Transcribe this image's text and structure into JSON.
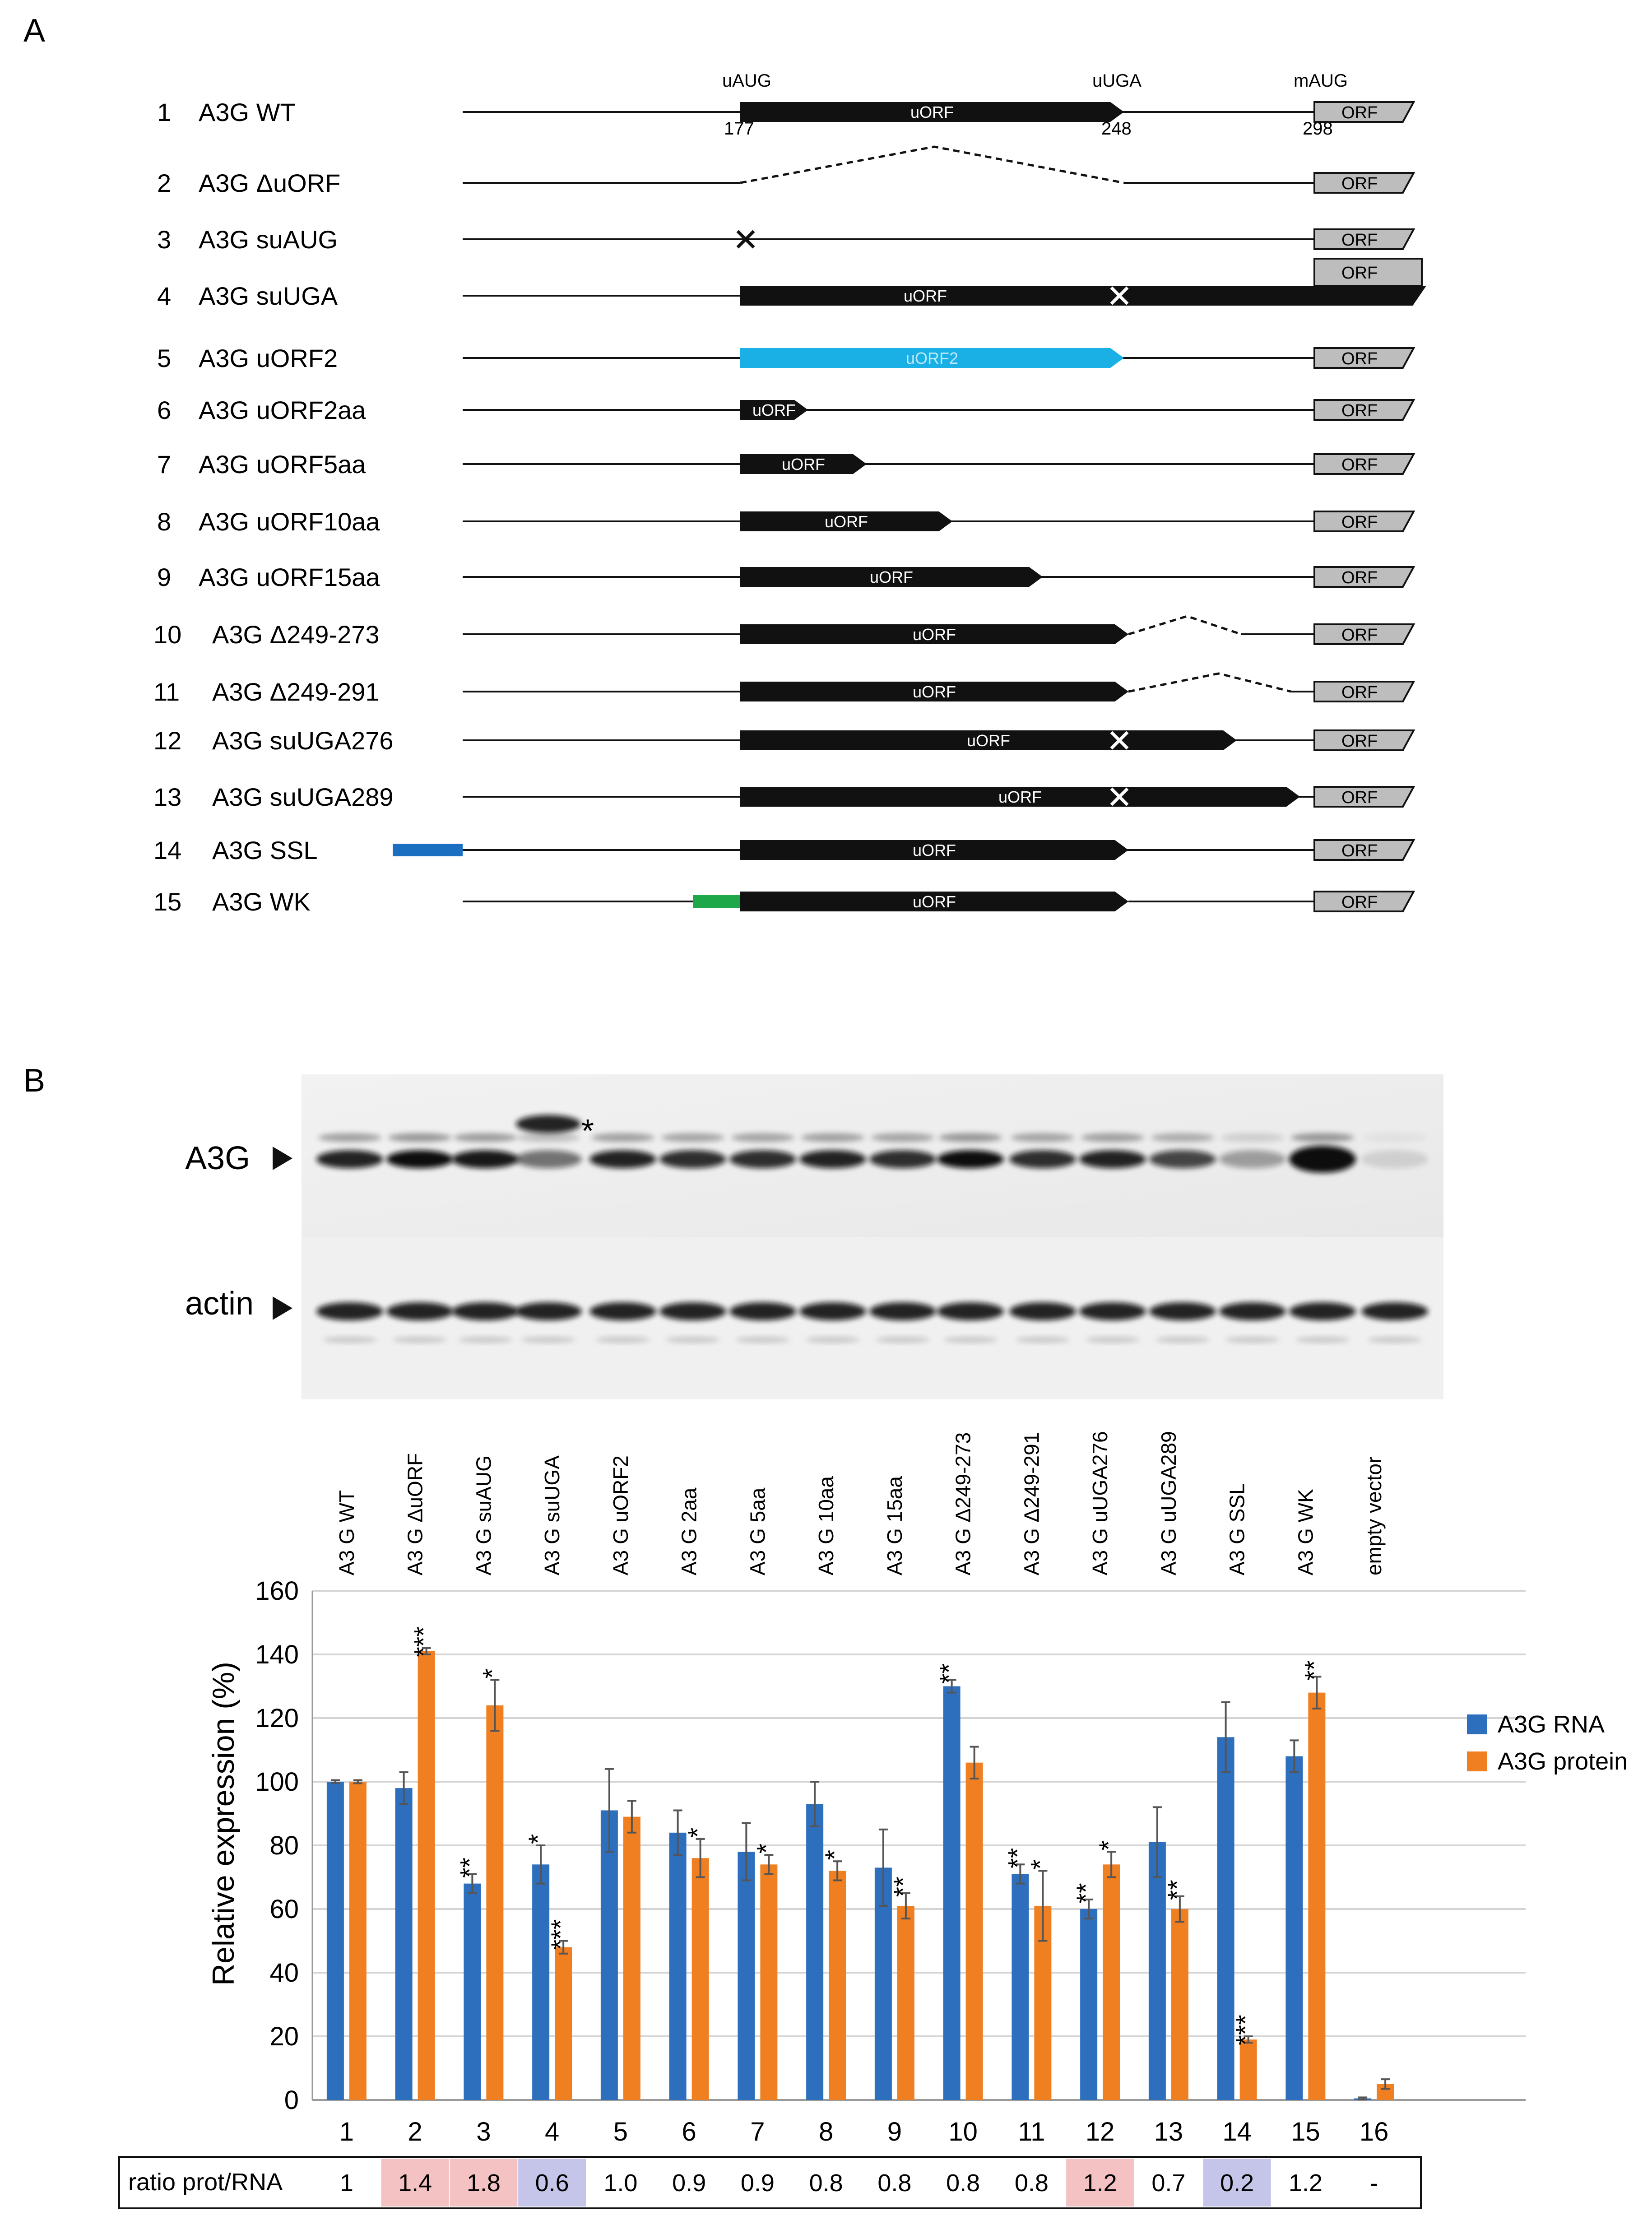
{
  "panelA": {
    "label": "A",
    "header_labels": {
      "uAUG": "uAUG",
      "uUGA": "uUGA",
      "mAUG": "mAUG",
      "pos177": "177",
      "pos248": "248",
      "pos298": "298"
    },
    "constructs": [
      {
        "num": "1",
        "name": "A3G WT"
      },
      {
        "num": "2",
        "name": "A3G ΔuORF"
      },
      {
        "num": "3",
        "name": "A3G suAUG"
      },
      {
        "num": "4",
        "name": "A3G suUGA"
      },
      {
        "num": "5",
        "name": "A3G uORF2"
      },
      {
        "num": "6",
        "name": "A3G uORF2aa"
      },
      {
        "num": "7",
        "name": "A3G uORF5aa"
      },
      {
        "num": "8",
        "name": "A3G uORF10aa"
      },
      {
        "num": "9",
        "name": "A3G uORF15aa"
      },
      {
        "num": "10",
        "name": "A3G Δ249-273"
      },
      {
        "num": "11",
        "name": "A3G Δ249-291"
      },
      {
        "num": "12",
        "name": "A3G suUGA276"
      },
      {
        "num": "13",
        "name": "A3G suUGA289"
      },
      {
        "num": "14",
        "name": "A3G SSL"
      },
      {
        "num": "15",
        "name": "A3G WK"
      }
    ],
    "uorf_text": "uORF",
    "uorf2_text": "uORF2",
    "orf_text": "ORF",
    "colors": {
      "uorf": "#111111",
      "uorf2": "#1ab0e6",
      "orf": "#bdbdbd",
      "ssl": "#1a6fc0",
      "wk": "#1fa84a"
    }
  },
  "panelB": {
    "label": "B",
    "blot_labels": {
      "a3g": "A3G",
      "actin": "actin",
      "asterisk": "*"
    },
    "column_labels": [
      "A3 G WT",
      "A3 G ΔuORF",
      "A3 G suAUG",
      "A3 G suUGA",
      "A3 G uORF2",
      "A3 G 2aa",
      "A3 G 5aa",
      "A3 G 10aa",
      "A3 G 15aa",
      "A3 G  Δ249-273",
      "A3 G  Δ249-291",
      "A3 G uUGA276",
      "A3 G  uUGA289",
      "A3 G SSL",
      "A3 G WK",
      "empty vector"
    ],
    "ratio_label": "ratio prot/RNA",
    "ratios": [
      {
        "value": "1",
        "highlight": ""
      },
      {
        "value": "1.4",
        "highlight": "#f4c2c2"
      },
      {
        "value": "1.8",
        "highlight": "#f4c2c2"
      },
      {
        "value": "0.6",
        "highlight": "#c5c5ea"
      },
      {
        "value": "1.0",
        "highlight": ""
      },
      {
        "value": "0.9",
        "highlight": ""
      },
      {
        "value": "0.9",
        "highlight": ""
      },
      {
        "value": "0.8",
        "highlight": ""
      },
      {
        "value": "0.8",
        "highlight": ""
      },
      {
        "value": "0.8",
        "highlight": ""
      },
      {
        "value": "0.8",
        "highlight": ""
      },
      {
        "value": "1.2",
        "highlight": "#f4c2c2"
      },
      {
        "value": "0.7",
        "highlight": ""
      },
      {
        "value": "0.2",
        "highlight": "#c5c5ea"
      },
      {
        "value": "1.2",
        "highlight": ""
      },
      {
        "value": "-",
        "highlight": ""
      }
    ]
  },
  "chart_data": {
    "type": "bar",
    "ylabel": "Relative expression (%)",
    "ylim": [
      0,
      160
    ],
    "yticks": [
      0,
      20,
      40,
      60,
      80,
      100,
      120,
      140,
      160
    ],
    "categories": [
      "1",
      "2",
      "3",
      "4",
      "5",
      "6",
      "7",
      "8",
      "9",
      "10",
      "11",
      "12",
      "13",
      "14",
      "15",
      "16"
    ],
    "legend_position": "right",
    "grid": true,
    "series": [
      {
        "name": "A3G RNA",
        "color": "#2e6fbd",
        "values": [
          100,
          98,
          68,
          74,
          91,
          84,
          78,
          93,
          73,
          130,
          71,
          60,
          81,
          114,
          108,
          0.5
        ],
        "errors": [
          0.5,
          5,
          3,
          6,
          13,
          7,
          9,
          7,
          12,
          2,
          3,
          3,
          11,
          11,
          5,
          0.3
        ],
        "significance": [
          "",
          "",
          "**",
          "*",
          "",
          "",
          "",
          "",
          "",
          "**",
          "**",
          "**",
          "",
          "",
          "",
          ""
        ]
      },
      {
        "name": "A3G protein",
        "color": "#f07f22",
        "values": [
          100,
          141,
          124,
          48,
          89,
          76,
          74,
          72,
          61,
          106,
          61,
          74,
          60,
          19,
          128,
          5
        ],
        "errors": [
          0.5,
          1,
          8,
          2,
          5,
          6,
          3,
          3,
          4,
          5,
          11,
          4,
          4,
          1,
          5,
          1.5
        ],
        "significance": [
          "",
          "***",
          "*",
          "***",
          "",
          "*",
          "*",
          "*",
          "**",
          "",
          "*",
          "*",
          "**",
          "***",
          "**",
          ""
        ]
      }
    ]
  }
}
